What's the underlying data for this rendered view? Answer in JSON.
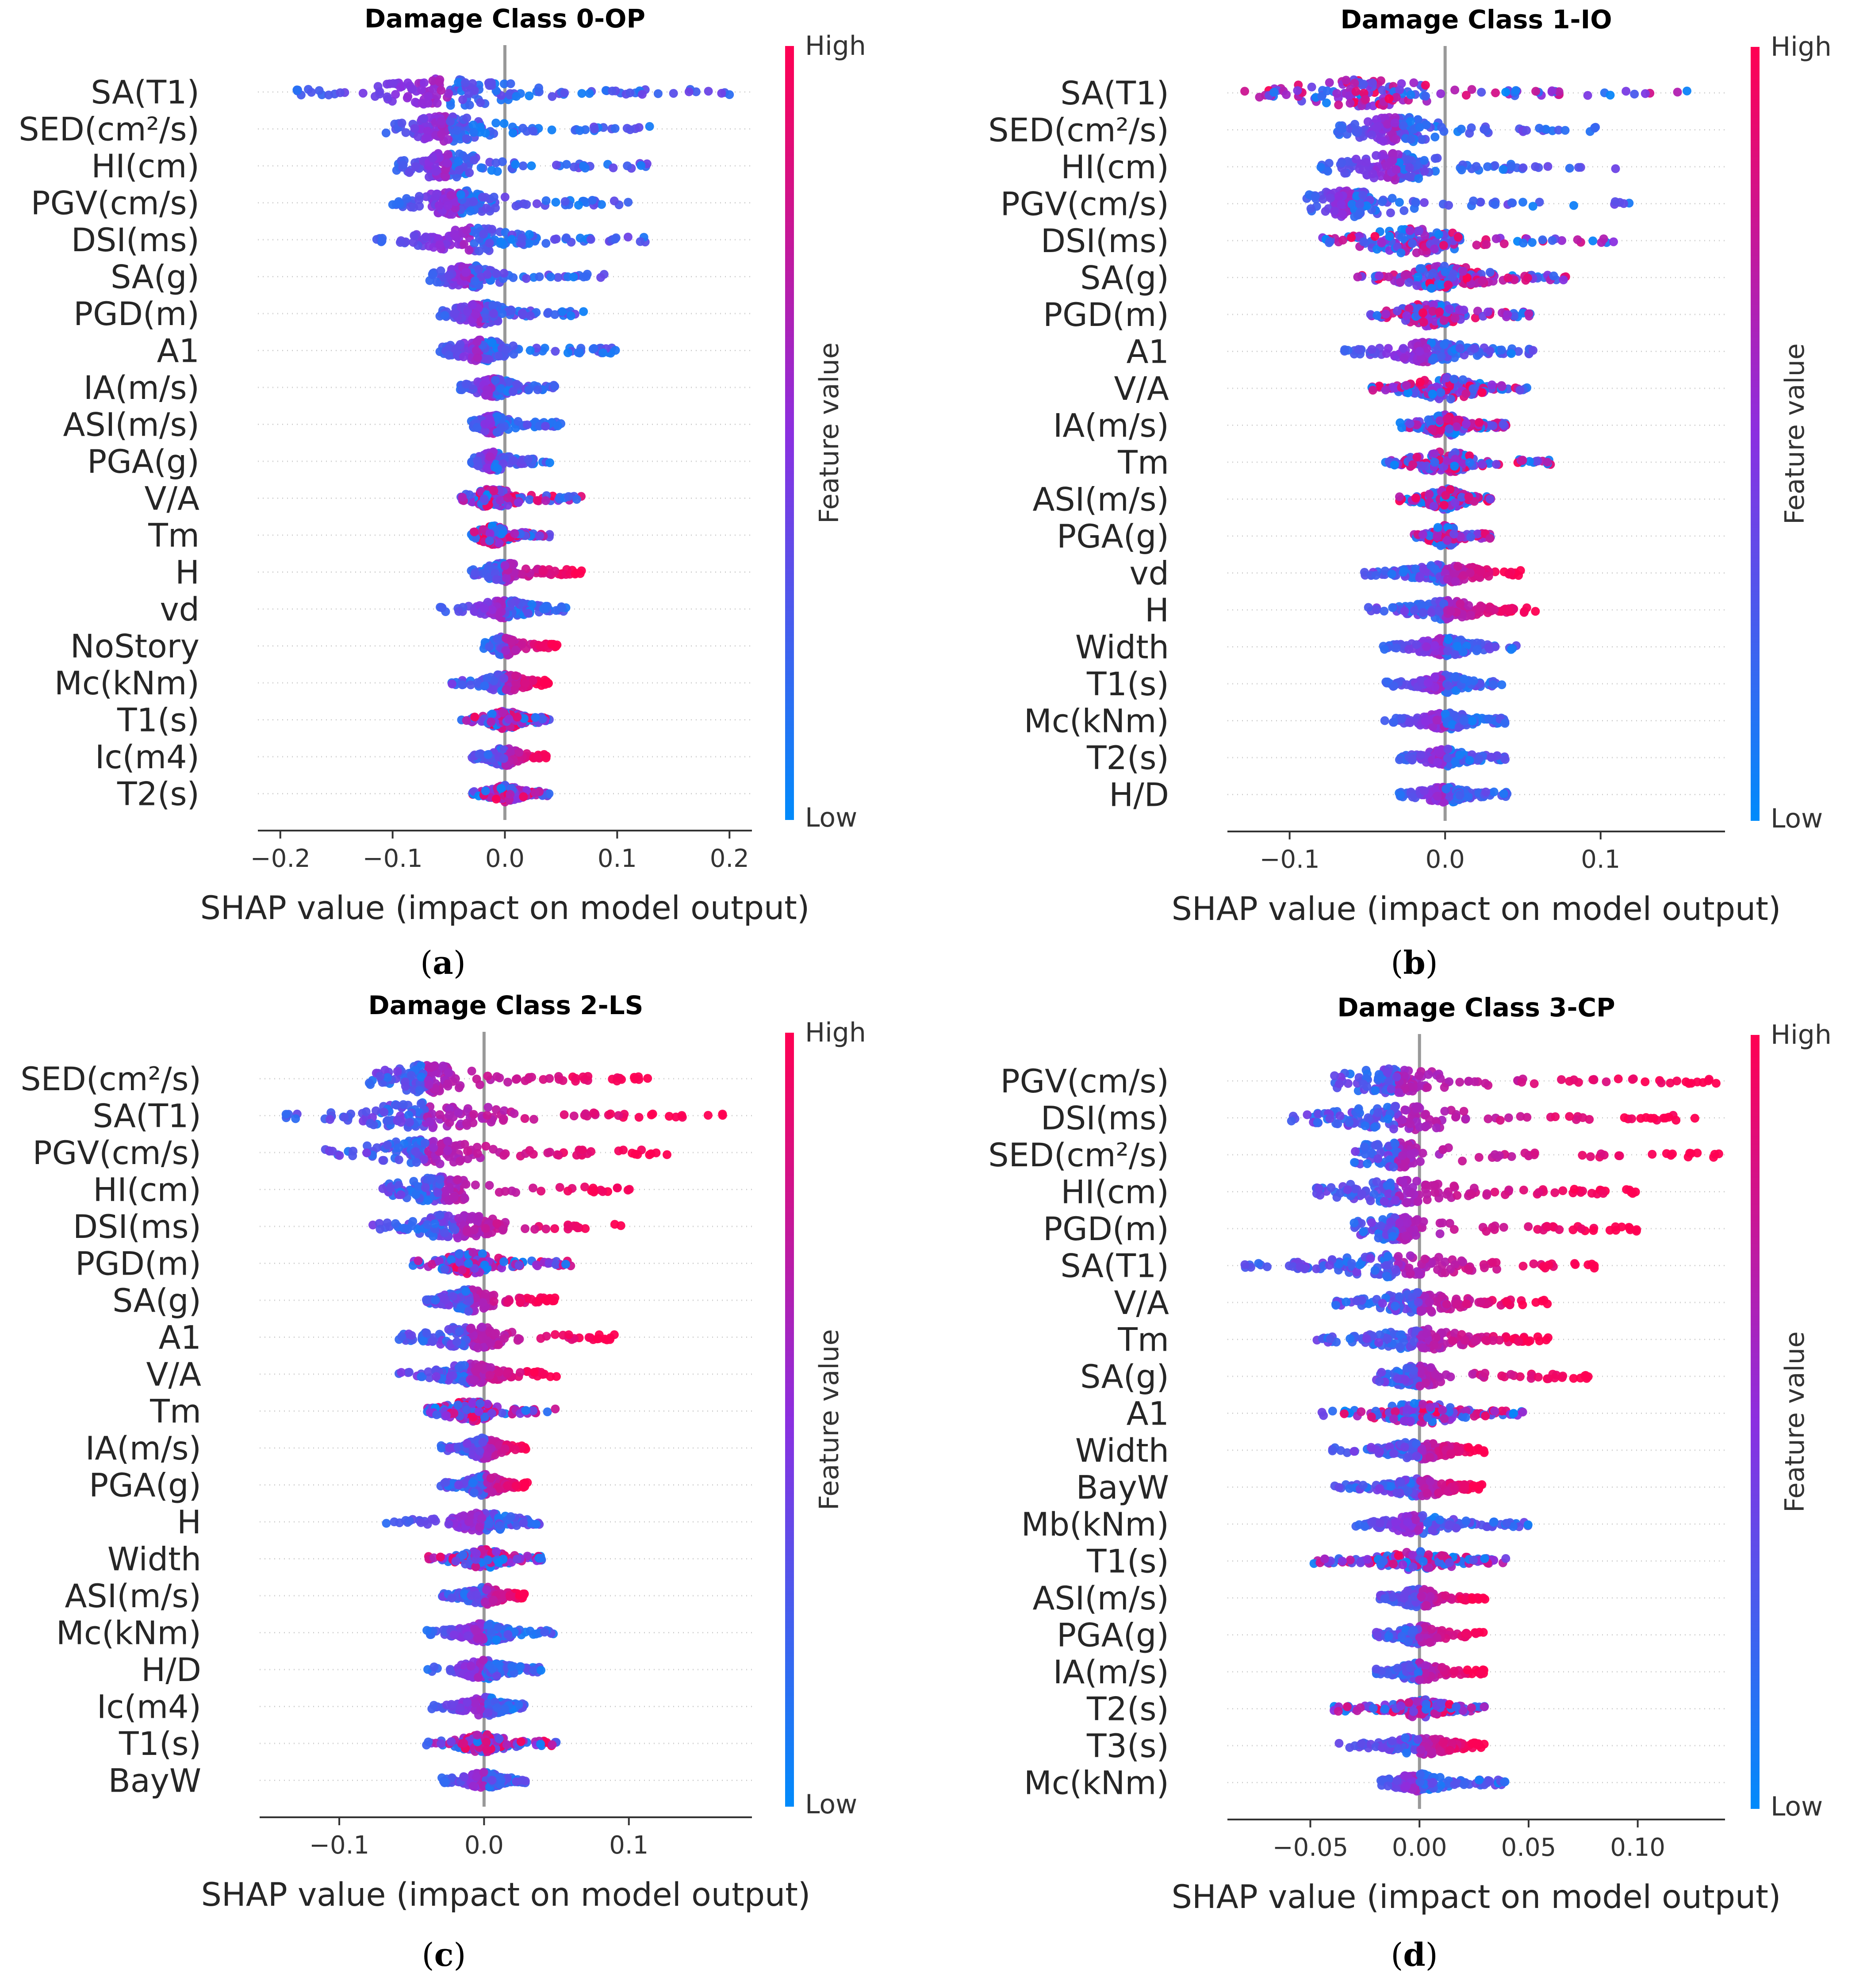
{
  "colors": {
    "low": "#008bfb",
    "mid": "#8b2fe0",
    "high": "#ff0052",
    "axis": "#999999",
    "grid": "#cccccc"
  },
  "colorbar": {
    "high_label": "High",
    "low_label": "Low",
    "title": "Feature value"
  },
  "chart_data": [
    {
      "id": "a",
      "type": "scatter",
      "subtype": "shap_beeswarm",
      "title": "Damage Class 0-OP",
      "caption": "a",
      "xlabel": "SHAP value (impact on model output)",
      "xlim": [
        -0.22,
        0.22
      ],
      "xticks": [
        -0.2,
        -0.1,
        0.0,
        0.1,
        0.2
      ],
      "xtick_labels": [
        "−0.2",
        "−0.1",
        "0.0",
        "0.1",
        "0.2"
      ],
      "features": [
        {
          "name": "SA(T1)",
          "min": -0.19,
          "max": 0.2,
          "center": -0.05,
          "spread": 1.0,
          "dir": "neg"
        },
        {
          "name": "SED(cm²/s)",
          "min": -0.11,
          "max": 0.13,
          "center": -0.05,
          "spread": 0.9,
          "dir": "neg"
        },
        {
          "name": "HI(cm)",
          "min": -0.1,
          "max": 0.13,
          "center": -0.05,
          "spread": 0.9,
          "dir": "neg"
        },
        {
          "name": "PGV(cm/s)",
          "min": -0.1,
          "max": 0.11,
          "center": -0.04,
          "spread": 0.85,
          "dir": "neg"
        },
        {
          "name": "DSI(ms)",
          "min": -0.12,
          "max": 0.13,
          "center": -0.03,
          "spread": 0.85,
          "dir": "neg"
        },
        {
          "name": "SA(g)",
          "min": -0.07,
          "max": 0.09,
          "center": -0.03,
          "spread": 0.75,
          "dir": "neg"
        },
        {
          "name": "PGD(m)",
          "min": -0.06,
          "max": 0.07,
          "center": -0.02,
          "spread": 0.7,
          "dir": "neg"
        },
        {
          "name": "A1",
          "min": -0.06,
          "max": 0.1,
          "center": -0.02,
          "spread": 0.7,
          "dir": "neg"
        },
        {
          "name": "IA(m/s)",
          "min": -0.04,
          "max": 0.05,
          "center": -0.01,
          "spread": 0.6,
          "dir": "neg"
        },
        {
          "name": "ASI(m/s)",
          "min": -0.03,
          "max": 0.05,
          "center": -0.01,
          "spread": 0.6,
          "dir": "neg"
        },
        {
          "name": "PGA(g)",
          "min": -0.03,
          "max": 0.04,
          "center": -0.01,
          "spread": 0.6,
          "dir": "neg"
        },
        {
          "name": "V/A",
          "min": -0.04,
          "max": 0.07,
          "center": -0.01,
          "spread": 0.6,
          "dir": "mix"
        },
        {
          "name": "Tm",
          "min": -0.03,
          "max": 0.04,
          "center": -0.01,
          "spread": 0.6,
          "dir": "mix"
        },
        {
          "name": "H",
          "min": -0.03,
          "max": 0.07,
          "center": 0.0,
          "spread": 0.6,
          "dir": "pos"
        },
        {
          "name": "vd",
          "min": -0.06,
          "max": 0.06,
          "center": 0.0,
          "spread": 0.6,
          "dir": "neg"
        },
        {
          "name": "NoStory",
          "min": -0.02,
          "max": 0.05,
          "center": 0.0,
          "spread": 0.6,
          "dir": "pos"
        },
        {
          "name": "Mc(kNm)",
          "min": -0.05,
          "max": 0.04,
          "center": 0.0,
          "spread": 0.55,
          "dir": "pos"
        },
        {
          "name": "T1(s)",
          "min": -0.04,
          "max": 0.04,
          "center": 0.0,
          "spread": 0.55,
          "dir": "mix"
        },
        {
          "name": "Ic(m4)",
          "min": -0.03,
          "max": 0.04,
          "center": 0.0,
          "spread": 0.55,
          "dir": "pos"
        },
        {
          "name": "T2(s)",
          "min": -0.03,
          "max": 0.04,
          "center": 0.0,
          "spread": 0.5,
          "dir": "mix"
        }
      ]
    },
    {
      "id": "b",
      "type": "scatter",
      "subtype": "shap_beeswarm",
      "title": "Damage Class 1-IO",
      "caption": "b",
      "xlabel": "SHAP value (impact on model output)",
      "xlim": [
        -0.14,
        0.18
      ],
      "xticks": [
        -0.1,
        0.0,
        0.1
      ],
      "xtick_labels": [
        "−0.1",
        "0.0",
        "0.1"
      ],
      "features": [
        {
          "name": "SA(T1)",
          "min": -0.13,
          "max": 0.16,
          "center": -0.05,
          "spread": 0.95,
          "dir": "mix"
        },
        {
          "name": "SED(cm²/s)",
          "min": -0.07,
          "max": 0.1,
          "center": -0.03,
          "spread": 0.9,
          "dir": "neg"
        },
        {
          "name": "HI(cm)",
          "min": -0.08,
          "max": 0.11,
          "center": -0.03,
          "spread": 0.95,
          "dir": "neg"
        },
        {
          "name": "PGV(cm/s)",
          "min": -0.09,
          "max": 0.12,
          "center": -0.06,
          "spread": 0.95,
          "dir": "neg"
        },
        {
          "name": "DSI(ms)",
          "min": -0.08,
          "max": 0.11,
          "center": -0.02,
          "spread": 0.9,
          "dir": "mix"
        },
        {
          "name": "SA(g)",
          "min": -0.06,
          "max": 0.08,
          "center": 0.0,
          "spread": 0.85,
          "dir": "mix"
        },
        {
          "name": "PGD(m)",
          "min": -0.05,
          "max": 0.06,
          "center": -0.01,
          "spread": 0.8,
          "dir": "mix"
        },
        {
          "name": "A1",
          "min": -0.07,
          "max": 0.06,
          "center": -0.01,
          "spread": 0.75,
          "dir": "neg"
        },
        {
          "name": "V/A",
          "min": -0.05,
          "max": 0.06,
          "center": 0.0,
          "spread": 0.75,
          "dir": "mix"
        },
        {
          "name": "IA(m/s)",
          "min": -0.03,
          "max": 0.04,
          "center": 0.0,
          "spread": 0.7,
          "dir": "mix"
        },
        {
          "name": "Tm",
          "min": -0.04,
          "max": 0.07,
          "center": 0.0,
          "spread": 0.7,
          "dir": "mix"
        },
        {
          "name": "ASI(m/s)",
          "min": -0.03,
          "max": 0.03,
          "center": 0.0,
          "spread": 0.7,
          "dir": "mix"
        },
        {
          "name": "PGA(g)",
          "min": -0.02,
          "max": 0.03,
          "center": 0.0,
          "spread": 0.7,
          "dir": "mix"
        },
        {
          "name": "vd",
          "min": -0.06,
          "max": 0.05,
          "center": 0.0,
          "spread": 0.6,
          "dir": "pos"
        },
        {
          "name": "H",
          "min": -0.05,
          "max": 0.06,
          "center": 0.0,
          "spread": 0.6,
          "dir": "pos"
        },
        {
          "name": "Width",
          "min": -0.04,
          "max": 0.05,
          "center": 0.0,
          "spread": 0.55,
          "dir": "neg"
        },
        {
          "name": "T1(s)",
          "min": -0.04,
          "max": 0.04,
          "center": 0.0,
          "spread": 0.55,
          "dir": "neg"
        },
        {
          "name": "Mc(kNm)",
          "min": -0.04,
          "max": 0.04,
          "center": 0.0,
          "spread": 0.55,
          "dir": "neg"
        },
        {
          "name": "T2(s)",
          "min": -0.03,
          "max": 0.04,
          "center": 0.0,
          "spread": 0.55,
          "dir": "neg"
        },
        {
          "name": "H/D",
          "min": -0.03,
          "max": 0.04,
          "center": 0.0,
          "spread": 0.5,
          "dir": "neg"
        }
      ]
    },
    {
      "id": "c",
      "type": "scatter",
      "subtype": "shap_beeswarm",
      "title": "Damage Class 2-LS",
      "caption": "c",
      "xlabel": "SHAP value (impact on model output)",
      "xlim": [
        -0.155,
        0.185
      ],
      "xticks": [
        -0.1,
        0.0,
        0.1
      ],
      "xtick_labels": [
        "−0.1",
        "0.0",
        "0.1"
      ],
      "features": [
        {
          "name": "SED(cm²/s)",
          "min": -0.08,
          "max": 0.12,
          "center": -0.04,
          "spread": 1.0,
          "dir": "pos"
        },
        {
          "name": "SA(T1)",
          "min": -0.14,
          "max": 0.17,
          "center": -0.04,
          "spread": 0.9,
          "dir": "pos"
        },
        {
          "name": "PGV(cm/s)",
          "min": -0.11,
          "max": 0.13,
          "center": -0.04,
          "spread": 0.9,
          "dir": "pos"
        },
        {
          "name": "HI(cm)",
          "min": -0.07,
          "max": 0.11,
          "center": -0.03,
          "spread": 0.9,
          "dir": "pos"
        },
        {
          "name": "DSI(ms)",
          "min": -0.08,
          "max": 0.1,
          "center": -0.02,
          "spread": 0.85,
          "dir": "pos"
        },
        {
          "name": "PGD(m)",
          "min": -0.05,
          "max": 0.06,
          "center": -0.01,
          "spread": 0.75,
          "dir": "mix"
        },
        {
          "name": "SA(g)",
          "min": -0.04,
          "max": 0.05,
          "center": -0.01,
          "spread": 0.75,
          "dir": "pos"
        },
        {
          "name": "A1",
          "min": -0.06,
          "max": 0.09,
          "center": -0.01,
          "spread": 0.75,
          "dir": "pos"
        },
        {
          "name": "V/A",
          "min": -0.06,
          "max": 0.05,
          "center": -0.01,
          "spread": 0.7,
          "dir": "pos"
        },
        {
          "name": "Tm",
          "min": -0.04,
          "max": 0.05,
          "center": -0.01,
          "spread": 0.7,
          "dir": "mix"
        },
        {
          "name": "IA(m/s)",
          "min": -0.03,
          "max": 0.03,
          "center": 0.0,
          "spread": 0.7,
          "dir": "pos"
        },
        {
          "name": "PGA(g)",
          "min": -0.03,
          "max": 0.03,
          "center": 0.0,
          "spread": 0.7,
          "dir": "pos"
        },
        {
          "name": "H",
          "min": -0.07,
          "max": 0.04,
          "center": 0.0,
          "spread": 0.6,
          "dir": "neg"
        },
        {
          "name": "Width",
          "min": -0.04,
          "max": 0.04,
          "center": 0.0,
          "spread": 0.6,
          "dir": "mix"
        },
        {
          "name": "ASI(m/s)",
          "min": -0.03,
          "max": 0.03,
          "center": 0.0,
          "spread": 0.6,
          "dir": "pos"
        },
        {
          "name": "Mc(kNm)",
          "min": -0.04,
          "max": 0.05,
          "center": 0.0,
          "spread": 0.6,
          "dir": "neg"
        },
        {
          "name": "H/D",
          "min": -0.04,
          "max": 0.04,
          "center": 0.0,
          "spread": 0.6,
          "dir": "neg"
        },
        {
          "name": "Ic(m4)",
          "min": -0.04,
          "max": 0.03,
          "center": 0.0,
          "spread": 0.6,
          "dir": "neg"
        },
        {
          "name": "T1(s)",
          "min": -0.04,
          "max": 0.05,
          "center": 0.0,
          "spread": 0.55,
          "dir": "mix"
        },
        {
          "name": "BayW",
          "min": -0.03,
          "max": 0.03,
          "center": 0.0,
          "spread": 0.5,
          "dir": "neg"
        }
      ]
    },
    {
      "id": "d",
      "type": "scatter",
      "subtype": "shap_beeswarm",
      "title": "Damage Class 3-CP",
      "caption": "d",
      "xlabel": "SHAP value (impact on model output)",
      "xlim": [
        -0.088,
        0.14
      ],
      "xticks": [
        -0.05,
        0.0,
        0.05,
        0.1
      ],
      "xtick_labels": [
        "−0.05",
        "0.00",
        "0.05",
        "0.10"
      ],
      "features": [
        {
          "name": "PGV(cm/s)",
          "min": -0.04,
          "max": 0.14,
          "center": -0.01,
          "spread": 0.85,
          "dir": "pos"
        },
        {
          "name": "DSI(ms)",
          "min": -0.06,
          "max": 0.13,
          "center": -0.01,
          "spread": 0.85,
          "dir": "pos"
        },
        {
          "name": "SED(cm²/s)",
          "min": -0.03,
          "max": 0.14,
          "center": -0.01,
          "spread": 0.85,
          "dir": "pos"
        },
        {
          "name": "HI(cm)",
          "min": -0.05,
          "max": 0.1,
          "center": -0.01,
          "spread": 0.8,
          "dir": "pos"
        },
        {
          "name": "PGD(m)",
          "min": -0.03,
          "max": 0.1,
          "center": -0.01,
          "spread": 0.8,
          "dir": "pos"
        },
        {
          "name": "SA(T1)",
          "min": -0.08,
          "max": 0.09,
          "center": -0.01,
          "spread": 0.8,
          "dir": "pos"
        },
        {
          "name": "V/A",
          "min": -0.04,
          "max": 0.06,
          "center": 0.0,
          "spread": 0.7,
          "dir": "pos"
        },
        {
          "name": "Tm",
          "min": -0.05,
          "max": 0.06,
          "center": 0.0,
          "spread": 0.7,
          "dir": "pos"
        },
        {
          "name": "SA(g)",
          "min": -0.02,
          "max": 0.08,
          "center": 0.0,
          "spread": 0.7,
          "dir": "pos"
        },
        {
          "name": "A1",
          "min": -0.05,
          "max": 0.05,
          "center": 0.0,
          "spread": 0.7,
          "dir": "mix"
        },
        {
          "name": "Width",
          "min": -0.04,
          "max": 0.03,
          "center": 0.0,
          "spread": 0.6,
          "dir": "pos"
        },
        {
          "name": "BayW",
          "min": -0.04,
          "max": 0.03,
          "center": 0.0,
          "spread": 0.6,
          "dir": "pos"
        },
        {
          "name": "Mb(kNm)",
          "min": -0.03,
          "max": 0.05,
          "center": 0.0,
          "spread": 0.6,
          "dir": "neg"
        },
        {
          "name": "T1(s)",
          "min": -0.05,
          "max": 0.04,
          "center": 0.0,
          "spread": 0.6,
          "dir": "mix"
        },
        {
          "name": "ASI(m/s)",
          "min": -0.02,
          "max": 0.03,
          "center": 0.0,
          "spread": 0.6,
          "dir": "pos"
        },
        {
          "name": "PGA(g)",
          "min": -0.02,
          "max": 0.03,
          "center": 0.0,
          "spread": 0.6,
          "dir": "pos"
        },
        {
          "name": "IA(m/s)",
          "min": -0.02,
          "max": 0.03,
          "center": 0.0,
          "spread": 0.6,
          "dir": "pos"
        },
        {
          "name": "T2(s)",
          "min": -0.04,
          "max": 0.03,
          "center": 0.0,
          "spread": 0.6,
          "dir": "mix"
        },
        {
          "name": "T3(s)",
          "min": -0.04,
          "max": 0.03,
          "center": 0.0,
          "spread": 0.6,
          "dir": "pos"
        },
        {
          "name": "Mc(kNm)",
          "min": -0.02,
          "max": 0.04,
          "center": 0.0,
          "spread": 0.55,
          "dir": "neg"
        }
      ]
    }
  ]
}
